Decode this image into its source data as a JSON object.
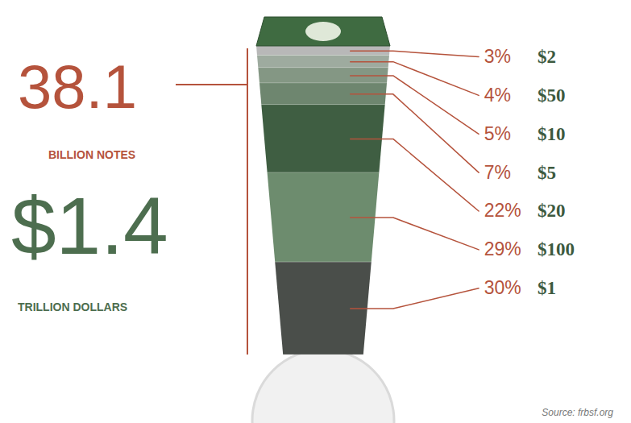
{
  "chart_data": {
    "type": "bar",
    "stacked": true,
    "categories": [
      "$2",
      "$50",
      "$10",
      "$5",
      "$20",
      "$100",
      "$1"
    ],
    "values": [
      3,
      4,
      5,
      7,
      22,
      29,
      30
    ],
    "value_labels": [
      "3%",
      "4%",
      "5%",
      "7%",
      "22%",
      "29%",
      "30%"
    ],
    "data_labels": true,
    "colors": [
      "#b8b8b8",
      "#9eab9f",
      "#849784",
      "#6e866f",
      "#3f5e42",
      "#6d8c6e",
      "#4a4e4a"
    ],
    "tick_labels": false,
    "annotations": [
      {
        "value": 38.1,
        "label": "38.1",
        "text": "BILLION NOTES",
        "color": "#b5533c"
      },
      {
        "value": 1.4,
        "label": "$1.4",
        "text": "TRILLION DOLLARS",
        "color": "#4d6e4f"
      }
    ],
    "caption": "Source: frbsf.org"
  }
}
